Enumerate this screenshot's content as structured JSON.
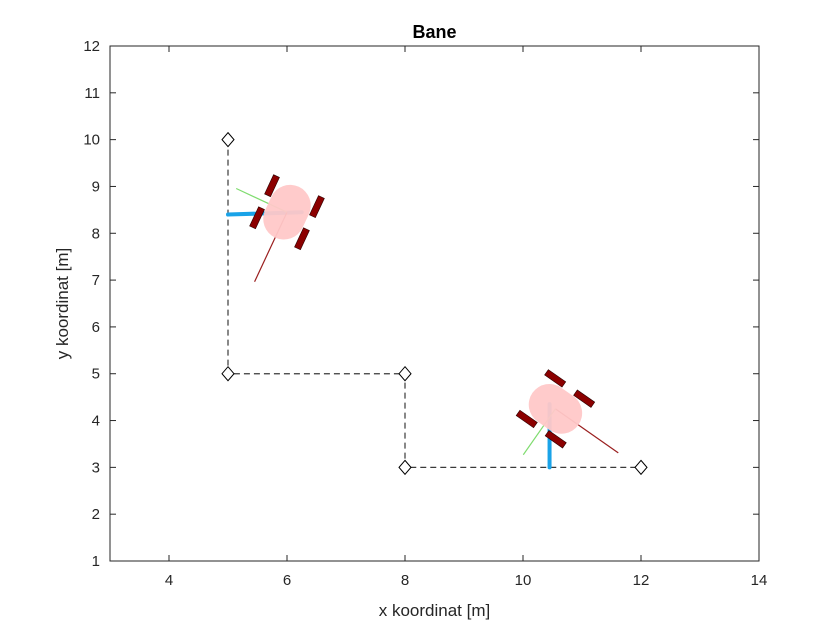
{
  "chart_data": {
    "type": "line",
    "title": "Bane",
    "xlabel": "x koordinat [m]",
    "ylabel": "y koordinat [m]",
    "xlim": [
      3,
      14
    ],
    "ylim": [
      1,
      12
    ],
    "xticks": [
      4,
      6,
      8,
      10,
      12,
      14
    ],
    "yticks": [
      1,
      2,
      3,
      4,
      5,
      6,
      7,
      8,
      9,
      10,
      11,
      12
    ],
    "grid": false,
    "path": {
      "style": "dashed",
      "color": "#3a3a3a",
      "marker": "diamond",
      "x": [
        5,
        5,
        8,
        8,
        12
      ],
      "y": [
        10,
        5,
        5,
        3,
        3
      ]
    },
    "robots": [
      {
        "x": 6.0,
        "y": 8.45,
        "heading_deg": -115,
        "body_color": "#ffc8c8",
        "wheel_color": "#8b0000",
        "direction_line_color": "#9a1f1f",
        "normal_line_color": "#7fdc6f",
        "track": {
          "color": "#1aa3e8",
          "x": [
            5.0,
            6.25
          ],
          "y": [
            8.4,
            8.45
          ]
        }
      },
      {
        "x": 10.55,
        "y": 4.25,
        "heading_deg": -35,
        "body_color": "#ffc8c8",
        "wheel_color": "#8b0000",
        "direction_line_color": "#9a1f1f",
        "normal_line_color": "#7fdc6f",
        "track": {
          "color": "#1aa3e8",
          "x": [
            10.45,
            10.45
          ],
          "y": [
            3.0,
            4.35
          ]
        }
      }
    ]
  }
}
